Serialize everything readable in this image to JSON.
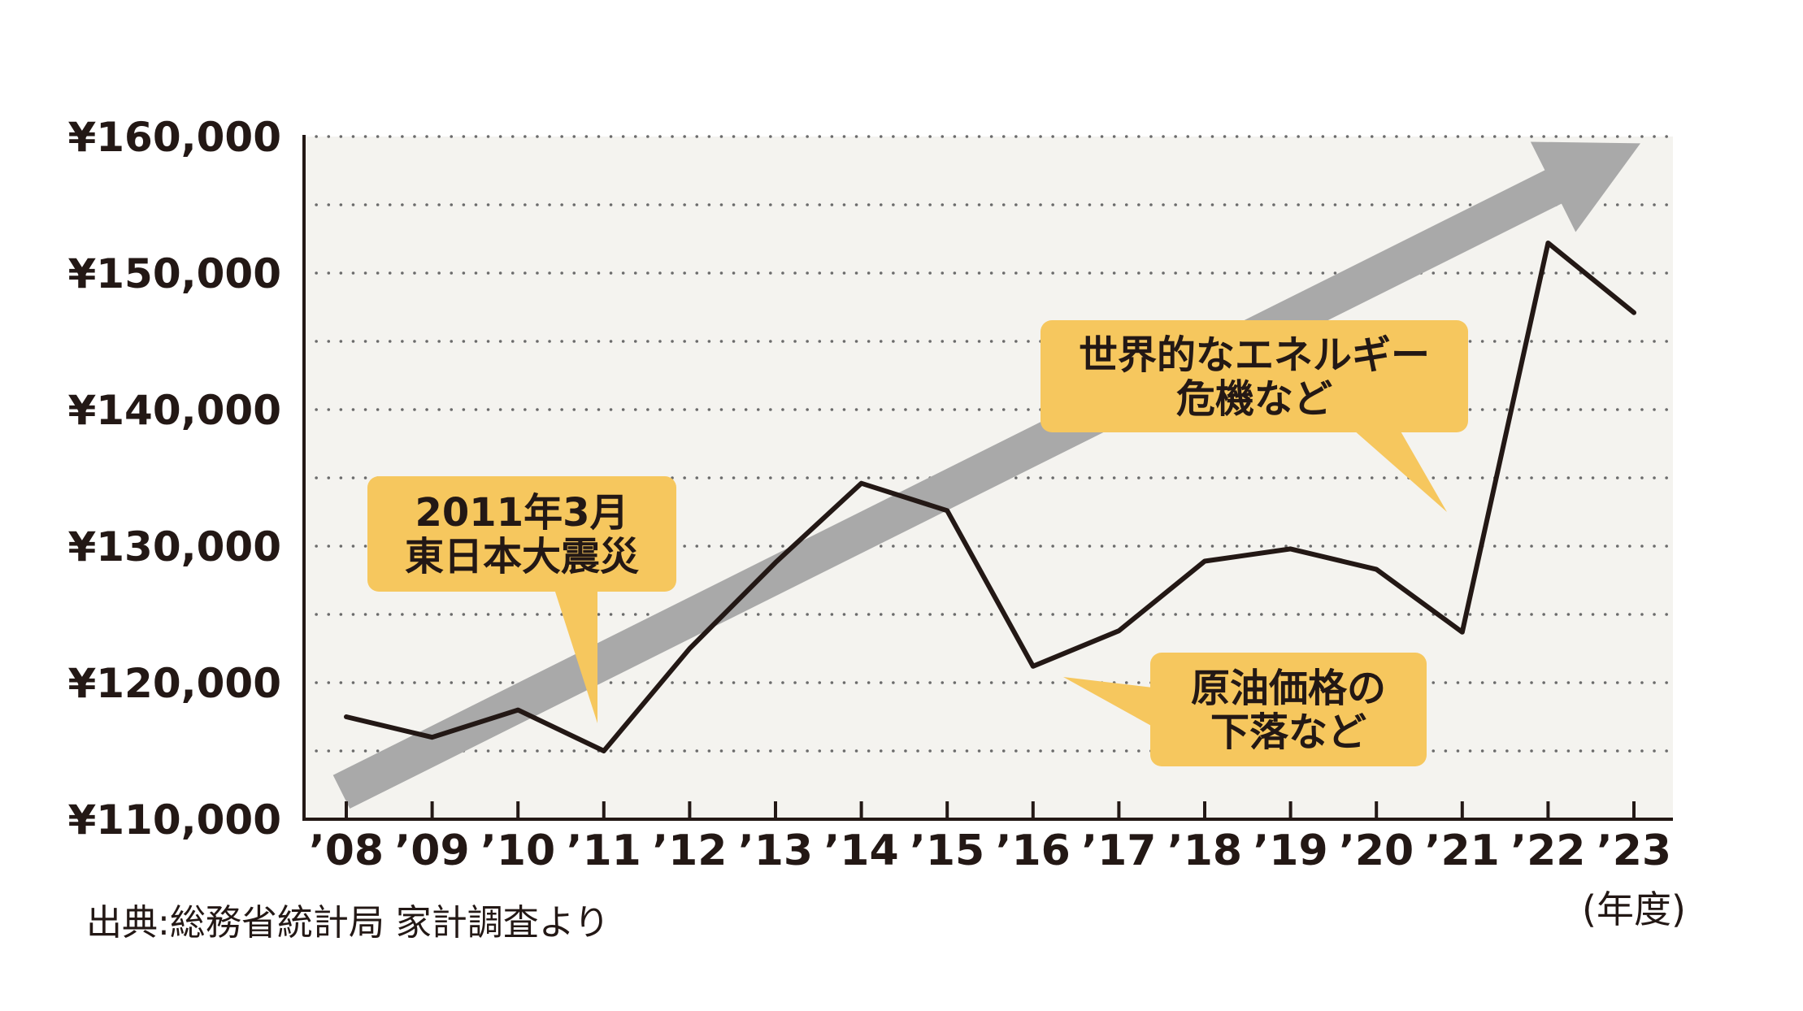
{
  "chart_data": {
    "type": "line",
    "title": "",
    "xlabel": "",
    "ylabel": "",
    "x_unit": "(年度)",
    "source": "出典:総務省統計局 家計調査より",
    "ylim": [
      110000,
      160000
    ],
    "y_ticks": [
      "¥110,000",
      "¥120,000",
      "¥130,000",
      "¥140,000",
      "¥150,000",
      "¥160,000"
    ],
    "categories": [
      "’08",
      "’09",
      "’10",
      "’11",
      "’12",
      "’13",
      "’14",
      "’15",
      "’16",
      "’17",
      "’18",
      "’19",
      "’20",
      "’21",
      "’22",
      "’23"
    ],
    "series": [
      {
        "values": [
          117500,
          116000,
          118000,
          115000,
          122500,
          128800,
          134600,
          132600,
          121200,
          123800,
          128900,
          129800,
          128300,
          123700,
          152200,
          147100
        ]
      }
    ],
    "trend_arrow": {
      "from_value": 112000,
      "to_value": 159500
    },
    "grid": "dotted-horizontal",
    "annotations": [
      {
        "lines": [
          "2011年3月",
          "東日本大震災"
        ],
        "year_index": 3
      },
      {
        "lines": [
          "世界的なエネルギー",
          "危機など"
        ],
        "year_index": 14
      },
      {
        "lines": [
          "原油価格の",
          "下落など"
        ],
        "year_index": 8
      }
    ],
    "colors": {
      "plot_background": "#f4f3ef",
      "line": "#231815",
      "arrow": "#a9a9a9",
      "callout": "#f6c75e",
      "grid": "#6b6b6b"
    }
  }
}
